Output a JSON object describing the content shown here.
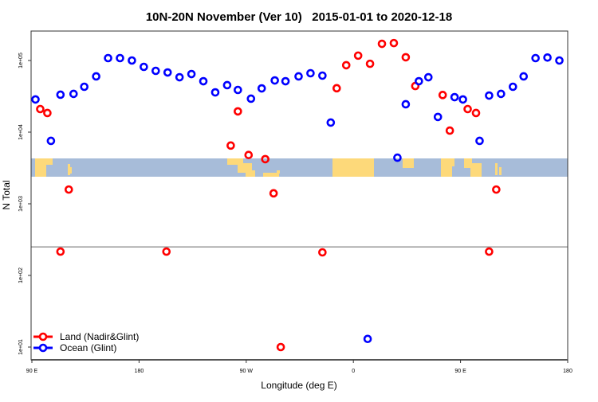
{
  "chart_data": {
    "type": "scatter",
    "title": "10N-20N November (Ver 10)   2015-01-01 to 2020-12-18",
    "xlabel": "Longitude (deg E)",
    "ylabel": "N Total",
    "x_note": "longitude unwrapped: 90 to 540 deg (90E, 180, 90W, 0, 90E, 180)",
    "xlim": [
      90,
      540
    ],
    "ylim_log10": [
      0.6,
      5.4
    ],
    "yscale": "log",
    "xticks": [
      {
        "value": 90,
        "label": "90 E"
      },
      {
        "value": 180,
        "label": "180"
      },
      {
        "value": 270,
        "label": "90 W"
      },
      {
        "value": 360,
        "label": "0"
      },
      {
        "value": 450,
        "label": "90 E"
      },
      {
        "value": 540,
        "label": "180"
      }
    ],
    "yticks": [
      {
        "value": 100000,
        "label": "1e+05"
      },
      {
        "value": 10000,
        "label": "1e+04"
      },
      {
        "value": 1000,
        "label": "1e+03"
      },
      {
        "value": 100,
        "label": "1e+02"
      },
      {
        "value": 10,
        "label": "1e+01"
      }
    ],
    "reference_line": 250,
    "legend_position": "bottom-left",
    "series": [
      {
        "name": "Land (Nadir&Glint)",
        "color": "#ff0000",
        "points": [
          [
            97,
            21000
          ],
          [
            103,
            18500
          ],
          [
            114,
            215
          ],
          [
            121,
            1580
          ],
          [
            203,
            215
          ],
          [
            257,
            6500
          ],
          [
            263,
            19500
          ],
          [
            272,
            4800
          ],
          [
            286,
            4200
          ],
          [
            293,
            1400
          ],
          [
            299,
            10
          ],
          [
            334,
            210
          ],
          [
            346,
            41000
          ],
          [
            354,
            86000
          ],
          [
            364,
            117000
          ],
          [
            374,
            90000
          ],
          [
            384,
            171000
          ],
          [
            394,
            175000
          ],
          [
            404,
            111000
          ],
          [
            412,
            44000
          ],
          [
            435,
            33000
          ],
          [
            441,
            10500
          ],
          [
            456,
            21000
          ],
          [
            463,
            18500
          ],
          [
            474,
            215
          ],
          [
            480,
            1580
          ]
        ]
      },
      {
        "name": "Ocean (Glint)",
        "color": "#0000ff",
        "points": [
          [
            93,
            28600
          ],
          [
            106,
            7550
          ],
          [
            114,
            33300
          ],
          [
            125,
            34200
          ],
          [
            134,
            43000
          ],
          [
            144,
            60000
          ],
          [
            154,
            108000
          ],
          [
            164,
            108000
          ],
          [
            174,
            100000
          ],
          [
            184,
            81500
          ],
          [
            194,
            71700
          ],
          [
            204,
            68100
          ],
          [
            214,
            58400
          ],
          [
            224,
            64700
          ],
          [
            234,
            51400
          ],
          [
            244,
            35900
          ],
          [
            254,
            45300
          ],
          [
            263,
            38800
          ],
          [
            274,
            29300
          ],
          [
            283,
            40800
          ],
          [
            294,
            52700
          ],
          [
            303,
            51400
          ],
          [
            314,
            60000
          ],
          [
            324,
            66400
          ],
          [
            334,
            61500
          ],
          [
            341,
            13600
          ],
          [
            372,
            13
          ],
          [
            397,
            4400
          ],
          [
            404,
            24500
          ],
          [
            415,
            51400
          ],
          [
            423,
            58400
          ],
          [
            431,
            16300
          ],
          [
            445,
            30800
          ],
          [
            452,
            28600
          ],
          [
            466,
            7550
          ],
          [
            474,
            32400
          ],
          [
            484,
            34200
          ],
          [
            494,
            43000
          ],
          [
            503,
            60000
          ],
          [
            513,
            108000
          ],
          [
            523,
            110000
          ],
          [
            533,
            100000
          ]
        ]
      }
    ]
  },
  "colors": {
    "map_ocean": "#a7bcd9",
    "map_land": "#fdd97a"
  }
}
